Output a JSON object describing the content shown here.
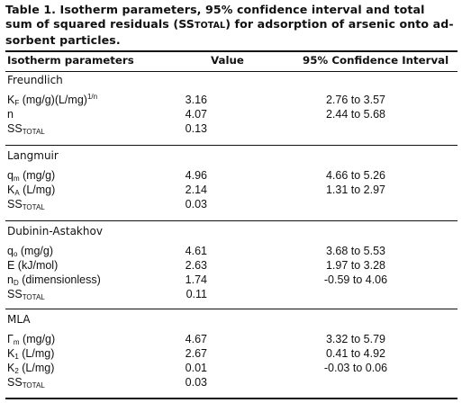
{
  "caption": {
    "line1": "Table 1. Isotherm parameters, 95% confidence interval and total",
    "line2": "sum of squared residuals (SSTOTAL) for adsorption of arsenic onto ad-",
    "line3": "sorbent particles."
  },
  "headers": {
    "param": "Isotherm parameters",
    "value": "Value",
    "ci": "95% Confidence Interval"
  },
  "groups": [
    {
      "name": "Freundlich",
      "rows": [
        {
          "param_main": "K",
          "param_sub": "F",
          "param_rest": " (mg/g)(L/mg)",
          "param_sup": "1/n",
          "value": "3.16",
          "ci": "2.76 to 3.57"
        },
        {
          "param_main": "n",
          "param_sub": "",
          "param_rest": "",
          "param_sup": "",
          "value": "4.07",
          "ci": "2.44 to 5.68"
        },
        {
          "param_main": "SS",
          "param_sub": "TOTAL",
          "param_rest": "",
          "param_sup": "",
          "value": "0.13",
          "ci": ""
        }
      ]
    },
    {
      "name": "Langmuir",
      "rows": [
        {
          "param_main": "q",
          "param_sub": "m",
          "param_rest": " (mg/g)",
          "param_sup": "",
          "value": "4.96",
          "ci": "4.66 to 5.26"
        },
        {
          "param_main": "K",
          "param_sub": "A",
          "param_rest": " (L/mg)",
          "param_sup": "",
          "value": "2.14",
          "ci": "1.31 to 2.97"
        },
        {
          "param_main": "SS",
          "param_sub": "TOTAL",
          "param_rest": "",
          "param_sup": "",
          "value": "0.03",
          "ci": ""
        }
      ]
    },
    {
      "name": "Dubinin-Astakhov",
      "rows": [
        {
          "param_main": "q",
          "param_sub": "o",
          "param_rest": " (mg/g)",
          "param_sup": "",
          "value": "4.61",
          "ci": "3.68 to 5.53"
        },
        {
          "param_main": "E (kJ/mol)",
          "param_sub": "",
          "param_rest": "",
          "param_sup": "",
          "value": "2.63",
          "ci": "1.97 to 3.28"
        },
        {
          "param_main": "n",
          "param_sub": "D",
          "param_rest": " (dimensionless)",
          "param_sup": "",
          "value": "1.74",
          "ci": "-0.59 to 4.06"
        },
        {
          "param_main": "SS",
          "param_sub": "TOTAL",
          "param_rest": "",
          "param_sup": "",
          "value": "0.11",
          "ci": ""
        }
      ]
    },
    {
      "name": "MLA",
      "rows": [
        {
          "param_main": "Γ",
          "param_sub": "m",
          "param_rest": " (mg/g)",
          "param_sup": "",
          "value": "4.67",
          "ci": "3.32 to 5.79"
        },
        {
          "param_main": "K",
          "param_sub": "1",
          "param_rest": " (L/mg)",
          "param_sup": "",
          "value": "2.67",
          "ci": "0.41 to 4.92"
        },
        {
          "param_main": "K",
          "param_sub": "2",
          "param_rest": " (L/mg)",
          "param_sup": "",
          "value": "0.01",
          "ci": "-0.03 to 0.06"
        },
        {
          "param_main": "SS",
          "param_sub": "TOTAL",
          "param_rest": "",
          "param_sup": "",
          "value": "0.03",
          "ci": ""
        }
      ]
    }
  ]
}
